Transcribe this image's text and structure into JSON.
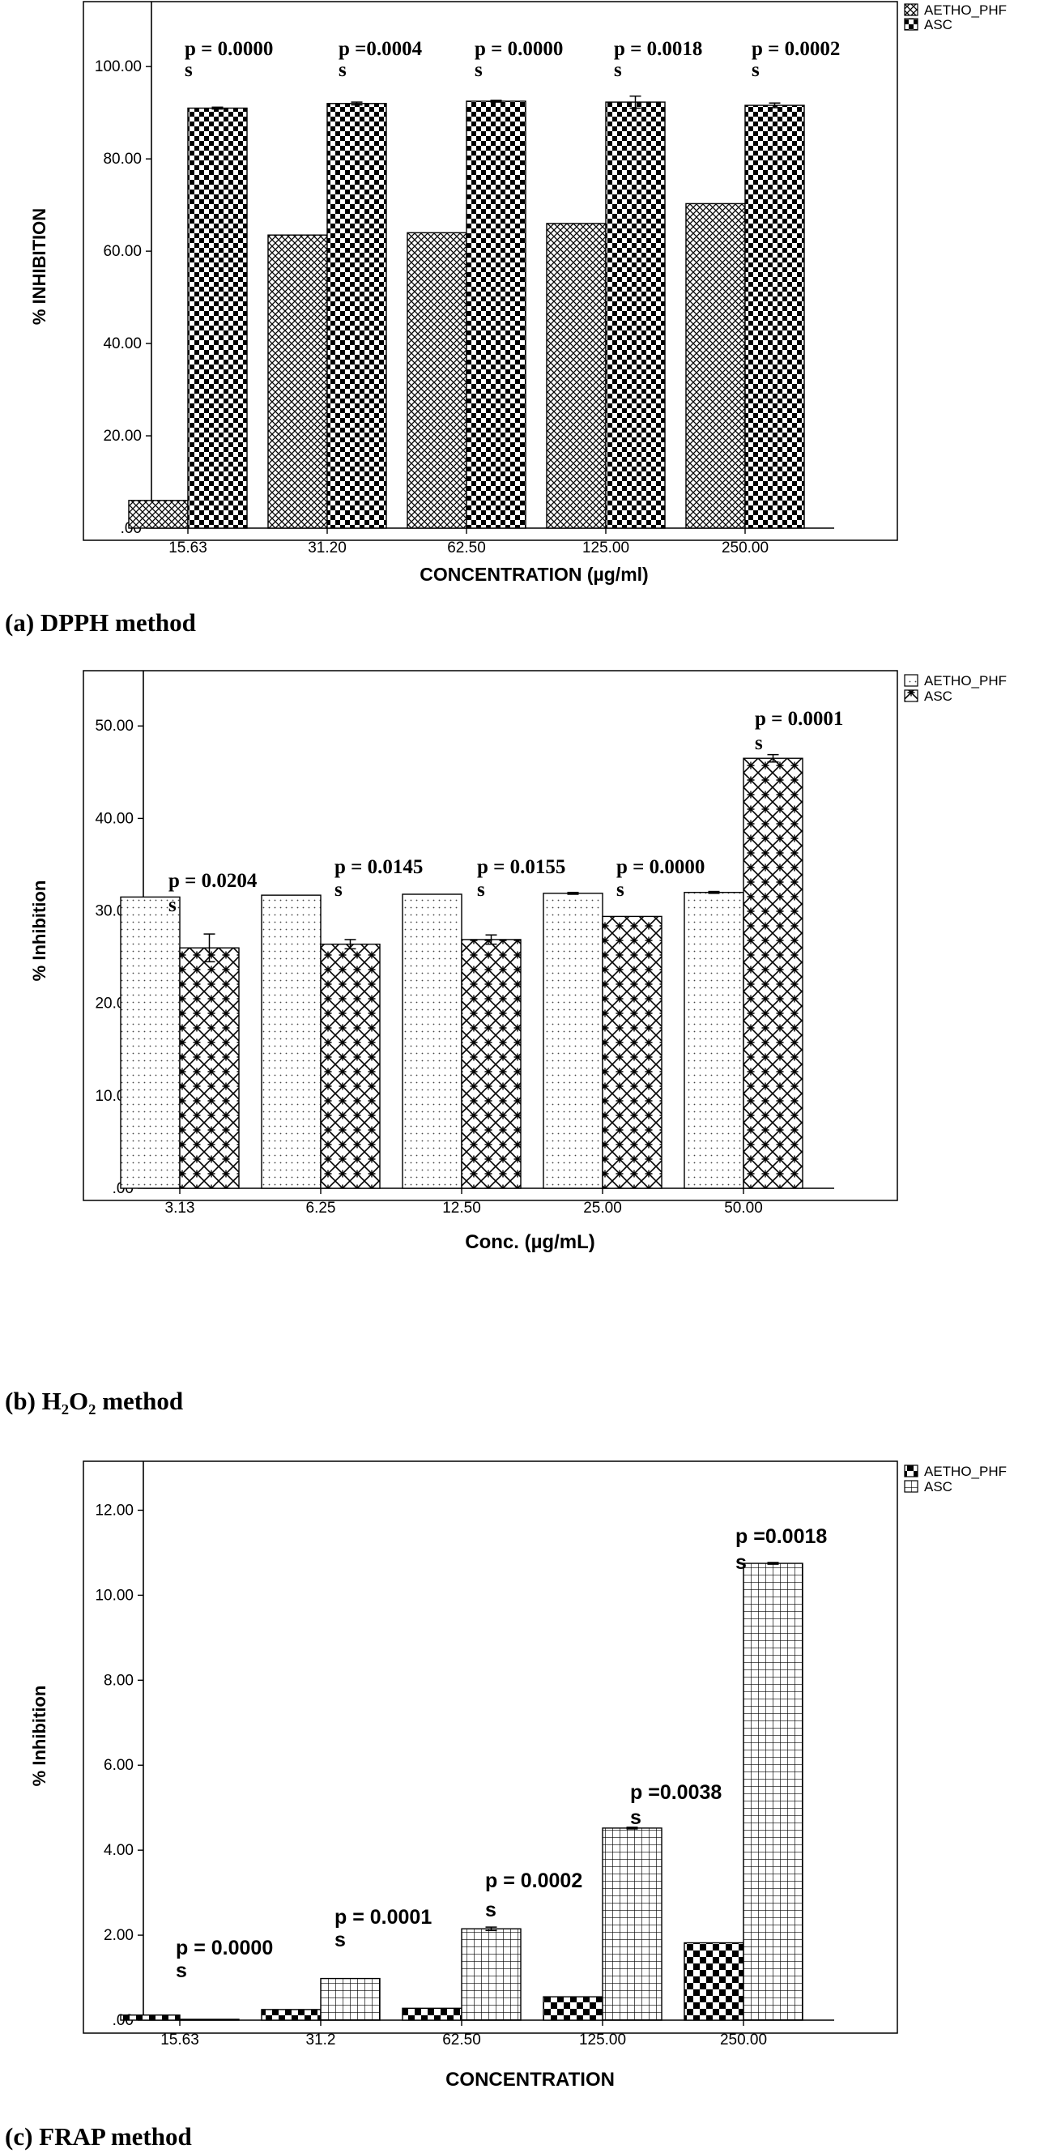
{
  "chart_data": [
    {
      "type": "bar",
      "categories": [
        "15.63",
        "31.20",
        "62.50",
        "125.00",
        "250.00"
      ],
      "series": [
        {
          "name": "AETHO_PHF",
          "values": [
            6.0,
            63.5,
            64.0,
            66.0,
            70.3
          ]
        },
        {
          "name": "ASC",
          "values": [
            91.0,
            92.0,
            92.5,
            92.3,
            91.6
          ]
        }
      ],
      "errors": {
        "AETHO_PHF": [
          0,
          0,
          0,
          0,
          0
        ],
        "ASC": [
          0.2,
          0.3,
          0.2,
          1.3,
          0.5
        ]
      },
      "yticks": [
        ".00",
        "20.00",
        "40.00",
        "60.00",
        "80.00",
        "100.00"
      ],
      "ylim": [
        0,
        106
      ],
      "xlabel": "CONCENTRATION (µg/ml)",
      "ylabel": "% INHIBITION",
      "legend_position": "top-right",
      "annotations": [
        {
          "p": "p = 0.0000",
          "sig": "s"
        },
        {
          "p": "p =0.0004",
          "sig": "s"
        },
        {
          "p": "p = 0.0000",
          "sig": "s"
        },
        {
          "p": "p = 0.0018",
          "sig": "s"
        },
        {
          "p": "p = 0.0002",
          "sig": "s"
        }
      ],
      "caption": "(a) DPPH method",
      "grid": false
    },
    {
      "type": "bar",
      "categories": [
        "3.13",
        "6.25",
        "12.50",
        "25.00",
        "50.00"
      ],
      "series": [
        {
          "name": "AETHO_PHF",
          "values": [
            31.5,
            31.7,
            31.8,
            31.9,
            32.0
          ]
        },
        {
          "name": "ASC",
          "values": [
            26.0,
            26.4,
            26.9,
            29.4,
            46.5
          ]
        }
      ],
      "errors": {
        "AETHO_PHF": [
          0,
          0,
          0,
          0.1,
          0.1
        ],
        "ASC": [
          1.5,
          0.5,
          0.5,
          0,
          0.4
        ]
      },
      "yticks": [
        ".00",
        "10.00",
        "20.00",
        "30.00",
        "40.00",
        "50.00"
      ],
      "ylim": [
        0,
        53
      ],
      "xlabel": "Conc. (µg/mL)",
      "ylabel": "% Inhibition",
      "legend_position": "top-right",
      "annotations": [
        {
          "p": "p = 0.0204",
          "sig": "s"
        },
        {
          "p": "p = 0.0145",
          "sig": "s"
        },
        {
          "p": "p = 0.0155",
          "sig": "s"
        },
        {
          "p": "p = 0.0000",
          "sig": "s"
        },
        {
          "p": "p = 0.0001",
          "sig": "s"
        }
      ],
      "caption": "(b) H₂O₂ method",
      "grid": false
    },
    {
      "type": "bar",
      "categories": [
        "15.63",
        "31.2",
        "62.50",
        "125.00",
        "250.00"
      ],
      "series": [
        {
          "name": "AETHO_PHF",
          "values": [
            0.12,
            0.25,
            0.28,
            0.55,
            1.82
          ]
        },
        {
          "name": "ASC",
          "values": [
            0.02,
            0.98,
            2.15,
            4.52,
            10.75
          ]
        }
      ],
      "errors": {
        "AETHO_PHF": [
          0,
          0,
          0,
          0,
          0
        ],
        "ASC": [
          0,
          0,
          0.04,
          0.02,
          0.02
        ]
      },
      "yticks": [
        ".00",
        "2.00",
        "4.00",
        "6.00",
        "8.00",
        "10.00",
        "12.00"
      ],
      "ylim": [
        0,
        12.6
      ],
      "xlabel": "CONCENTRATION",
      "ylabel": "% Inhibition",
      "legend_position": "top-right",
      "annotations": [
        {
          "p": "p = 0.0000",
          "sig": "s"
        },
        {
          "p": "p = 0.0001",
          "sig": "s"
        },
        {
          "p": "p = 0.0002",
          "sig": "s"
        },
        {
          "p": "p =0.0038",
          "sig": "s"
        },
        {
          "p": "p =0.0018",
          "sig": "s"
        }
      ],
      "caption": "(c) FRAP method",
      "grid": false
    }
  ]
}
